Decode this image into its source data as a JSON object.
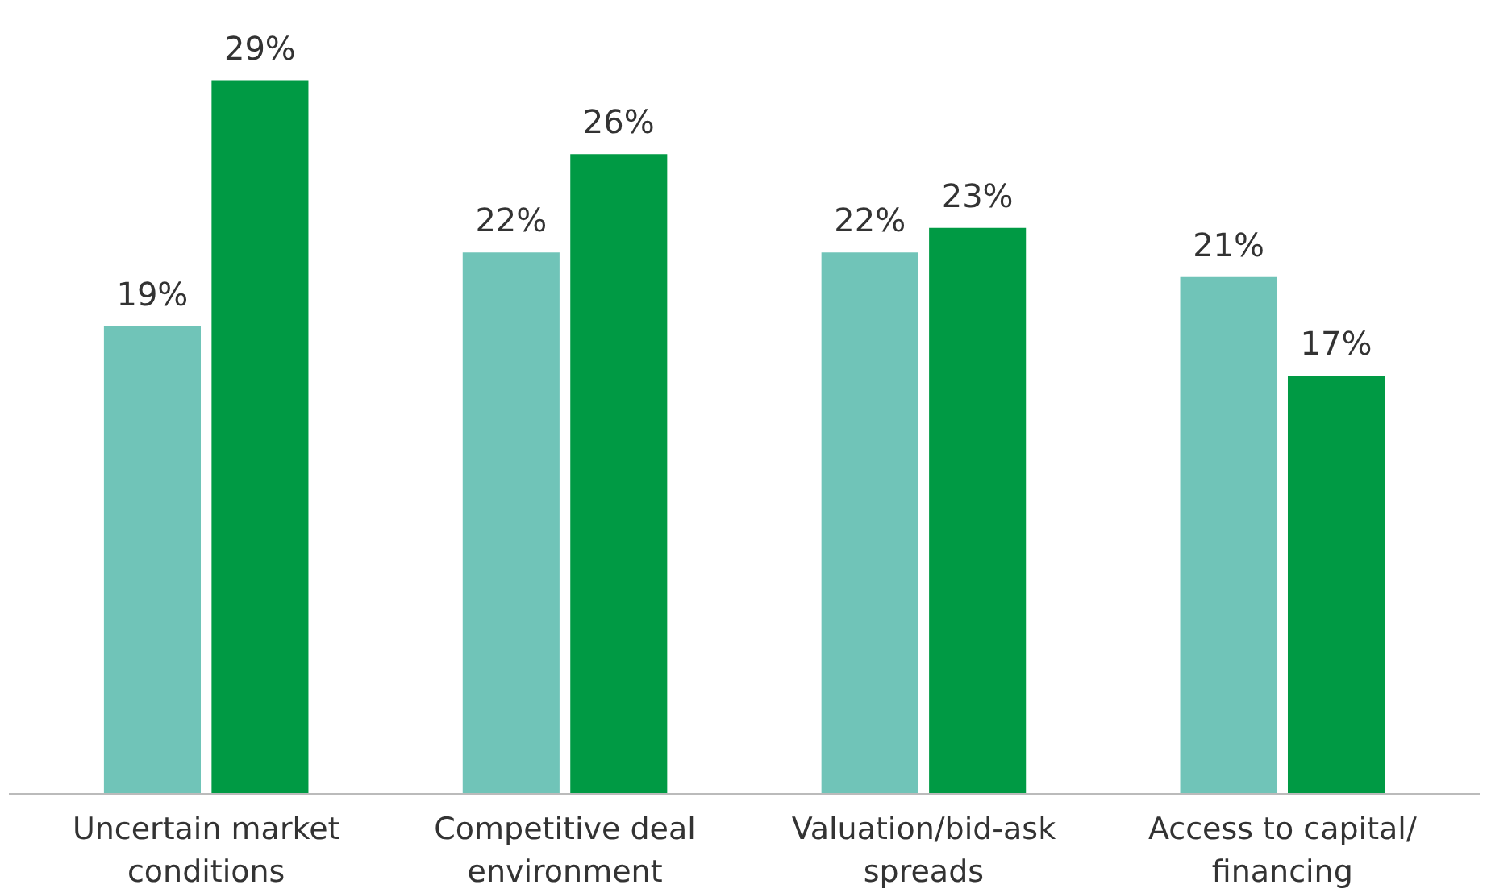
{
  "chart_data": {
    "type": "bar",
    "categories": [
      "Uncertain market conditions",
      "Competitive deal environment",
      "Valuation/bid-ask spreads",
      "Access to capital/ financing"
    ],
    "series": [
      {
        "color": "#70c4b8",
        "values": [
          19,
          22,
          22,
          21
        ],
        "value_labels": [
          "19%",
          "22%",
          "22%",
          "21%"
        ]
      },
      {
        "color": "#009a44",
        "values": [
          29,
          26,
          23,
          17
        ],
        "value_labels": [
          "29%",
          "26%",
          "23%",
          "17%"
        ]
      }
    ],
    "grid": false,
    "tick_labels": "x"
  }
}
